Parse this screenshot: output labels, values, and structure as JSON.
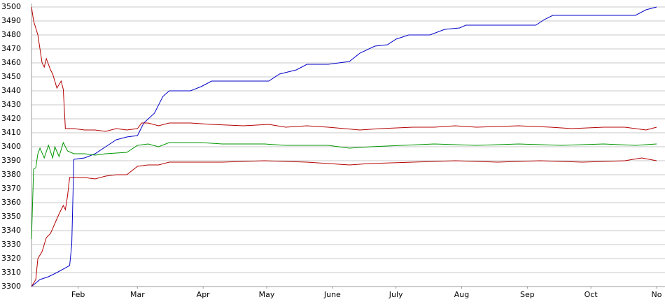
{
  "chart_data": {
    "type": "line",
    "xlim": [
      10,
      305
    ],
    "xticks": [
      {
        "value": 32,
        "label": "Feb"
      },
      {
        "value": 60,
        "label": "Mar"
      },
      {
        "value": 91,
        "label": "Apr"
      },
      {
        "value": 121,
        "label": "May"
      },
      {
        "value": 152,
        "label": "June"
      },
      {
        "value": 182,
        "label": "July"
      },
      {
        "value": 213,
        "label": "Aug"
      },
      {
        "value": 244,
        "label": "Sep"
      },
      {
        "value": 274,
        "label": "Oct"
      },
      {
        "value": 305,
        "label": "No"
      }
    ],
    "ylim": [
      3300,
      3500
    ],
    "yticks": [
      3300,
      3310,
      3320,
      3330,
      3340,
      3350,
      3360,
      3370,
      3380,
      3390,
      3400,
      3410,
      3420,
      3430,
      3440,
      3450,
      3460,
      3470,
      3480,
      3490,
      3500
    ],
    "grid": true,
    "series": [
      {
        "color": "#0000c8",
        "x": [
          10,
          14,
          18,
          22,
          28,
          29,
          30,
          35,
          40,
          45,
          50,
          55,
          60,
          63,
          68,
          72,
          75,
          85,
          90,
          95,
          110,
          122,
          127,
          135,
          140,
          150,
          160,
          165,
          172,
          178,
          182,
          188,
          198,
          205,
          212,
          215,
          240,
          248,
          252,
          256,
          280,
          295,
          300,
          305
        ],
        "values": [
          3300,
          3305,
          3307,
          3310,
          3315,
          3330,
          3391,
          3392,
          3395,
          3400,
          3405,
          3407,
          3408,
          3417,
          3424,
          3436,
          3440,
          3440,
          3443,
          3447,
          3447,
          3447,
          3452,
          3455,
          3459,
          3459,
          3461,
          3467,
          3472,
          3473,
          3477,
          3480,
          3480,
          3484,
          3485,
          3487,
          3487,
          3487,
          3491,
          3494,
          3494,
          3494,
          3498,
          3500
        ]
      },
      {
        "color": "#b40000",
        "x": [
          10,
          11,
          13,
          15,
          16,
          17,
          19,
          20,
          22,
          24,
          25,
          26,
          30,
          35,
          40,
          45,
          50,
          55,
          60,
          62,
          65,
          70,
          75,
          85,
          95,
          110,
          122,
          130,
          140,
          150,
          165,
          175,
          190,
          200,
          210,
          220,
          240,
          255,
          265,
          280,
          290,
          300,
          305
        ],
        "values": [
          3500,
          3490,
          3480,
          3460,
          3457,
          3463,
          3455,
          3452,
          3442,
          3447,
          3441,
          3413,
          3413,
          3412,
          3412,
          3411,
          3413,
          3412,
          3413,
          3417,
          3417,
          3415,
          3417,
          3417,
          3416,
          3415,
          3416,
          3414,
          3415,
          3414,
          3412,
          3413,
          3414,
          3414,
          3415,
          3414,
          3415,
          3414,
          3413,
          3414,
          3414,
          3412,
          3414
        ]
      },
      {
        "color": "#009600",
        "x": [
          10,
          11,
          12,
          13,
          14,
          16,
          18,
          20,
          21,
          23,
          25,
          27,
          30,
          35,
          40,
          45,
          55,
          60,
          65,
          70,
          75,
          90,
          100,
          120,
          130,
          150,
          160,
          170,
          185,
          200,
          220,
          240,
          260,
          280,
          295,
          305
        ],
        "values": [
          3334,
          3384,
          3385,
          3395,
          3399,
          3392,
          3401,
          3392,
          3400,
          3393,
          3403,
          3397,
          3395,
          3395,
          3394,
          3395,
          3396,
          3401,
          3402,
          3400,
          3403,
          3403,
          3402,
          3402,
          3401,
          3401,
          3399,
          3400,
          3401,
          3402,
          3401,
          3402,
          3401,
          3402,
          3401,
          3402
        ]
      },
      {
        "color": "#b40000",
        "x": [
          10,
          12,
          13,
          15,
          17,
          19,
          21,
          23,
          25,
          26,
          27,
          28,
          35,
          40,
          45,
          50,
          55,
          60,
          65,
          70,
          75,
          100,
          120,
          140,
          150,
          160,
          170,
          190,
          210,
          230,
          250,
          270,
          290,
          298,
          305
        ],
        "values": [
          3300,
          3305,
          3320,
          3325,
          3335,
          3338,
          3345,
          3352,
          3358,
          3355,
          3365,
          3378,
          3378,
          3377,
          3379,
          3380,
          3380,
          3386,
          3387,
          3387,
          3389,
          3389,
          3390,
          3389,
          3388,
          3387,
          3388,
          3389,
          3390,
          3389,
          3390,
          3389,
          3390,
          3392,
          3390
        ]
      }
    ]
  }
}
